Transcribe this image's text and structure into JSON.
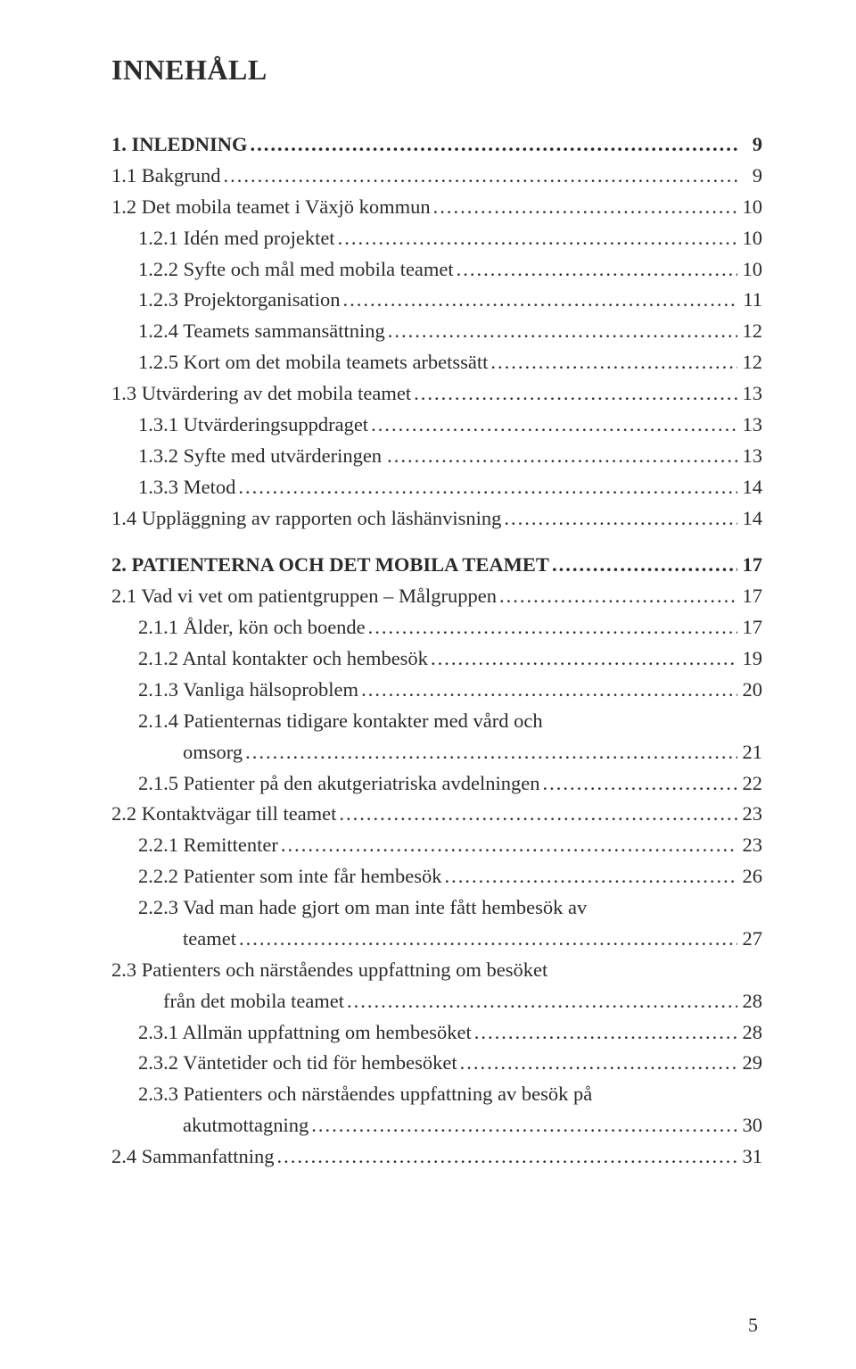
{
  "heading": "INNEHÅLL",
  "page_number": "5",
  "entries": [
    {
      "label": "1. INLEDNING",
      "page": "9",
      "level": 0
    },
    {
      "label": "1.1 Bakgrund",
      "page": "9",
      "level": 1
    },
    {
      "label": "1.2 Det mobila teamet i Växjö kommun",
      "page": "10",
      "level": 1
    },
    {
      "label": "1.2.1 Idén med projektet",
      "page": "10",
      "level": 2
    },
    {
      "label": "1.2.2 Syfte och mål med mobila teamet",
      "page": "10",
      "level": 2
    },
    {
      "label": "1.2.3 Projektorganisation",
      "page": "11",
      "level": 2
    },
    {
      "label": "1.2.4 Teamets sammansättning",
      "page": "12",
      "level": 2
    },
    {
      "label": "1.2.5 Kort om det mobila teamets arbetssätt",
      "page": "12",
      "level": 2
    },
    {
      "label": "1.3 Utvärdering av det mobila teamet",
      "page": "13",
      "level": 1
    },
    {
      "label": "1.3.1 Utvärderingsuppdraget",
      "page": "13",
      "level": 2
    },
    {
      "label": "1.3.2 Syfte med utvärderingen",
      "page": "13",
      "level": 2,
      "spaced": true
    },
    {
      "label": "1.3.3 Metod",
      "page": "14",
      "level": 2
    },
    {
      "label": "1.4 Uppläggning av rapporten och läshänvisning",
      "page": "14",
      "level": 1
    },
    {
      "gap": true
    },
    {
      "label": "2. PATIENTERNA OCH DET MOBILA TEAMET",
      "page": "17",
      "level": 0
    },
    {
      "label": "2.1 Vad vi vet om patientgruppen – Målgruppen",
      "page": "17",
      "level": 1
    },
    {
      "label": "2.1.1 Ålder, kön och boende",
      "page": "17",
      "level": 2
    },
    {
      "label": "2.1.2 Antal kontakter och hembesök",
      "page": "19",
      "level": 2
    },
    {
      "label": "2.1.3 Vanliga hälsoproblem",
      "page": "20",
      "level": 2
    },
    {
      "label": "2.1.4 Patienternas tidigare kontakter med vård och",
      "level": 2,
      "nopage": true
    },
    {
      "label": "omsorg",
      "page": "21",
      "cont": "cont"
    },
    {
      "label": "2.1.5 Patienter på den akutgeriatriska avdelningen",
      "page": "22",
      "level": 2
    },
    {
      "label": "2.2 Kontaktvägar till teamet",
      "page": "23",
      "level": 1
    },
    {
      "label": "2.2.1 Remittenter",
      "page": "23",
      "level": 2
    },
    {
      "label": "2.2.2 Patienter som inte får hembesök",
      "page": "26",
      "level": 2
    },
    {
      "label": "2.2.3 Vad man hade gjort om man inte fått hembesök av",
      "level": 2,
      "nopage": true
    },
    {
      "label": "teamet",
      "page": "27",
      "cont": "cont"
    },
    {
      "label": "2.3 Patienters och närståendes uppfattning om besöket",
      "level": 1,
      "nopage": true
    },
    {
      "label": "från det mobila teamet",
      "page": "28",
      "cont": "cont2"
    },
    {
      "label": "2.3.1 Allmän uppfattning om hembesöket",
      "page": "28",
      "level": 2
    },
    {
      "label": "2.3.2 Väntetider och tid för hembesöket",
      "page": "29",
      "level": 2
    },
    {
      "label": "2.3.3 Patienters och närståendes uppfattning av besök på",
      "level": 2,
      "nopage": true
    },
    {
      "label": "akutmottagning",
      "page": "30",
      "cont": "cont"
    },
    {
      "label": "2.4 Sammanfattning",
      "page": "31",
      "level": 1
    }
  ]
}
